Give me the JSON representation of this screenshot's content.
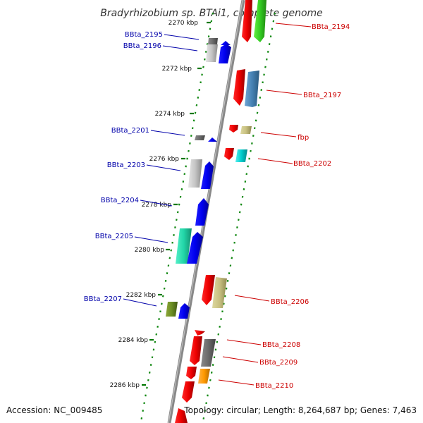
{
  "title": "Bradyrhizobium sp. BTAi1, complete genome",
  "footer": {
    "accession": "Accession: NC_009485",
    "topology": "Topology: circular; Length: 8,264,687 bp; Genes: 7,463"
  },
  "ticks": [
    "2270 kbp",
    "2272 kbp",
    "2274 kbp",
    "2276 kbp",
    "2278 kbp",
    "2280 kbp",
    "2282 kbp",
    "2284 kbp",
    "2286 kbp"
  ],
  "left_labels": [
    "BBta_2195",
    "BBta_2196",
    "BBta_2201",
    "BBta_2203",
    "BBta_2204",
    "BBta_2205",
    "BBta_2207"
  ],
  "right_labels": [
    "BBta_2194",
    "BBta_2197",
    "fbp",
    "BBta_2202",
    "BBta_2206",
    "BBta_2208",
    "BBta_2209",
    "BBta_2210"
  ],
  "colors": {
    "left_label": "#0000aa",
    "right_label": "#cc0000",
    "tick": "#007700",
    "backbone": "#888888"
  }
}
